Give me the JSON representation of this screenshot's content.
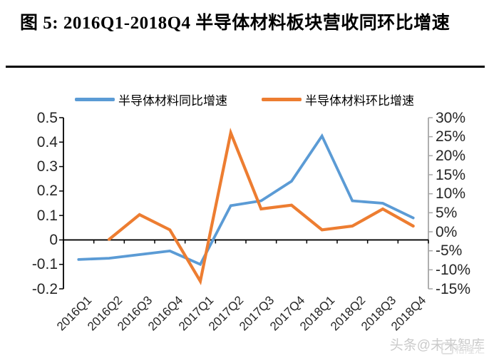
{
  "figure": {
    "title": "图 5: 2016Q1-2018Q4 半导体材料板块营收同环比增速"
  },
  "legend": {
    "position": "top",
    "items": [
      {
        "label": "半导体材料同比增速",
        "color": "#5B9BD5"
      },
      {
        "label": "半导体材料环比增速",
        "color": "#ED7D31"
      }
    ]
  },
  "chart_data": {
    "type": "line",
    "title": "2016Q1-2018Q4 半导体材料板块营收同环比增速",
    "categories": [
      "2016Q1",
      "2016Q2",
      "2016Q3",
      "2016Q4",
      "2017Q1",
      "2017Q2",
      "2017Q3",
      "2017Q4",
      "2018Q1",
      "2018Q2",
      "2018Q3",
      "2018Q4"
    ],
    "series": [
      {
        "name": "半导体材料同比增速",
        "axis": "left",
        "color": "#5B9BD5",
        "values": [
          -0.08,
          -0.075,
          -0.06,
          -0.045,
          -0.1,
          0.14,
          0.16,
          0.24,
          0.425,
          0.16,
          0.15,
          0.09
        ]
      },
      {
        "name": "半导体材料环比增速",
        "axis": "right",
        "color": "#ED7D31",
        "values": [
          null,
          -2,
          4.5,
          0.5,
          -13,
          26,
          6,
          7,
          0.5,
          1.5,
          6,
          1.5
        ]
      }
    ],
    "left_axis": {
      "min": -0.2,
      "max": 0.5,
      "tick_values": [
        0.5,
        0.4,
        0.3,
        0.2,
        0.1,
        0,
        -0.1,
        -0.2
      ],
      "tick_labels": [
        "0.5",
        "0.4",
        "0.3",
        "0.2",
        "0.1",
        "0",
        "-0.1",
        "-0.2"
      ]
    },
    "right_axis": {
      "min": -15,
      "max": 30,
      "tick_values": [
        30,
        25,
        20,
        15,
        10,
        5,
        0,
        -5,
        -10,
        -15
      ],
      "tick_labels": [
        "30%",
        "25%",
        "20%",
        "15%",
        "10%",
        "5%",
        "0%",
        "-5%",
        "-10%",
        "-15%"
      ]
    },
    "grid": "off",
    "xlabel": "",
    "ylabel": ""
  },
  "watermark": {
    "text": "头条@未来智库",
    "logo": "格隆汇"
  }
}
